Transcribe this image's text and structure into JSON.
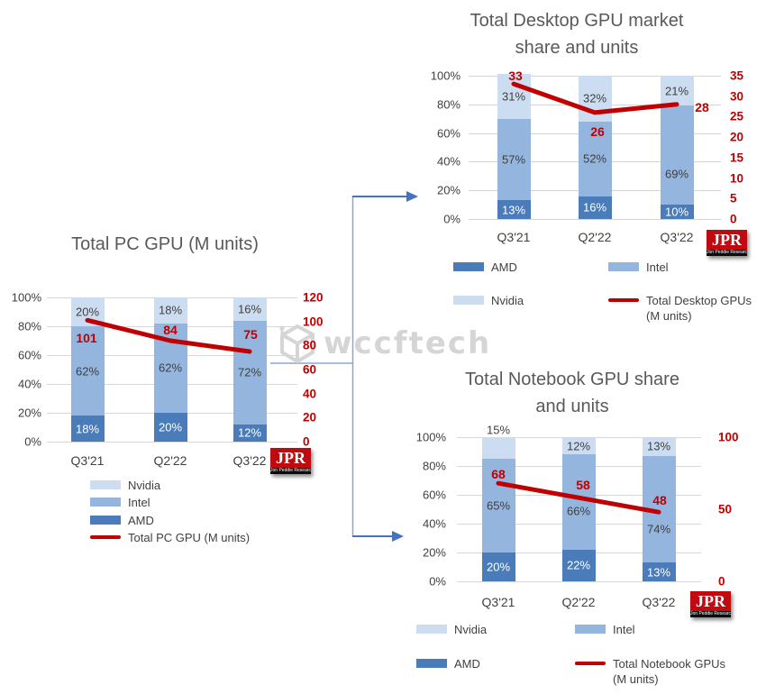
{
  "watermark": {
    "text": "wccftech"
  },
  "jpr": {
    "text": "JPR",
    "subtext": "Jon Peddie Research"
  },
  "colors": {
    "amd": "#4a7cba",
    "intel": "#93b5de",
    "nvidia": "#cdddf1",
    "line_red": "#c00000",
    "text_gray": "#404040",
    "title_gray": "#595959",
    "connector_blue": "#4472c4"
  },
  "chart_data": [
    {
      "id": "pc",
      "type": "stacked-bar+line",
      "title_lines": [
        "Total PC GPU (M units)"
      ],
      "categories": [
        "Q3'21",
        "Q2'22",
        "Q3'22"
      ],
      "left_axis_ticks": [
        "100%",
        "80%",
        "60%",
        "40%",
        "20%",
        "0%"
      ],
      "right_axis_ticks": [
        "120",
        "100",
        "80",
        "60",
        "40",
        "20",
        "0"
      ],
      "series": [
        {
          "name": "AMD",
          "color": "#4a7cba",
          "label_color": "#ffffff",
          "values": [
            18,
            20,
            12
          ]
        },
        {
          "name": "Intel",
          "color": "#93b5de",
          "label_color": "#404040",
          "values": [
            62,
            62,
            72
          ]
        },
        {
          "name": "Nvidia",
          "color": "#cdddf1",
          "label_color": "#404040",
          "values": [
            20,
            18,
            16
          ]
        }
      ],
      "line": {
        "name": "Total PC GPU (M units)",
        "color": "#c00000",
        "values": [
          101,
          84,
          75
        ],
        "axis_max": 120
      },
      "legend": {
        "layout": "vertical",
        "items": [
          {
            "label": "Nvidia",
            "swatch": "box",
            "color": "#cdddf1"
          },
          {
            "label": "Intel",
            "swatch": "box",
            "color": "#93b5de"
          },
          {
            "label": "AMD",
            "swatch": "box",
            "color": "#4a7cba"
          },
          {
            "label": "Total PC GPU (M units)",
            "swatch": "line",
            "color": "#c00000"
          }
        ]
      }
    },
    {
      "id": "desktop",
      "type": "stacked-bar+line",
      "title_lines": [
        "Total Desktop GPU market",
        "share and units"
      ],
      "categories": [
        "Q3'21",
        "Q2'22",
        "Q3'22"
      ],
      "left_axis_ticks": [
        "100%",
        "80%",
        "60%",
        "40%",
        "20%",
        "0%"
      ],
      "right_axis_ticks": [
        "35",
        "30",
        "25",
        "20",
        "15",
        "10",
        "5",
        "0"
      ],
      "series": [
        {
          "name": "AMD",
          "color": "#4a7cba",
          "label_color": "#ffffff",
          "values": [
            13,
            16,
            10
          ]
        },
        {
          "name": "Intel",
          "color": "#93b5de",
          "label_color": "#404040",
          "values": [
            57,
            52,
            69
          ]
        },
        {
          "name": "Nvidia",
          "color": "#cdddf1",
          "label_color": "#404040",
          "values": [
            31,
            32,
            21
          ]
        }
      ],
      "line": {
        "name": "Total Desktop GPUs (M units)",
        "color": "#c00000",
        "values": [
          33,
          26,
          28
        ],
        "axis_max": 35
      },
      "legend": {
        "layout": "grid",
        "items": [
          {
            "label": "AMD",
            "swatch": "box",
            "color": "#4a7cba"
          },
          {
            "label": "Intel",
            "swatch": "box",
            "color": "#93b5de"
          },
          {
            "label": "Nvidia",
            "swatch": "box",
            "color": "#cdddf1"
          },
          {
            "label": "Total Desktop GPUs\n(M units)",
            "swatch": "line",
            "color": "#c00000"
          }
        ]
      }
    },
    {
      "id": "notebook",
      "type": "stacked-bar+line",
      "title_lines": [
        "Total Notebook GPU share",
        "and units"
      ],
      "categories": [
        "Q3'21",
        "Q2'22",
        "Q3'22"
      ],
      "left_axis_ticks": [
        "100%",
        "80%",
        "60%",
        "40%",
        "20%",
        "0%"
      ],
      "right_axis_ticks": [
        "100",
        "50",
        "0"
      ],
      "series": [
        {
          "name": "AMD",
          "color": "#4a7cba",
          "label_color": "#ffffff",
          "values": [
            20,
            22,
            13
          ]
        },
        {
          "name": "Intel",
          "color": "#93b5de",
          "label_color": "#404040",
          "values": [
            65,
            66,
            74
          ]
        },
        {
          "name": "Nvidia",
          "color": "#cdddf1",
          "label_color": "#404040",
          "values": [
            15,
            12,
            13
          ],
          "outside": [
            true,
            false,
            false
          ]
        }
      ],
      "line": {
        "name": "Total Notebook GPUs (M units)",
        "color": "#c00000",
        "values": [
          68,
          58,
          48
        ],
        "axis_max": 100
      },
      "legend": {
        "layout": "grid",
        "items": [
          {
            "label": "Nvidia",
            "swatch": "box",
            "color": "#cdddf1"
          },
          {
            "label": "Intel",
            "swatch": "box",
            "color": "#93b5de"
          },
          {
            "label": "AMD",
            "swatch": "box",
            "color": "#4a7cba"
          },
          {
            "label": "Total Notebook GPUs\n(M units)",
            "swatch": "line",
            "color": "#c00000"
          }
        ]
      }
    }
  ]
}
